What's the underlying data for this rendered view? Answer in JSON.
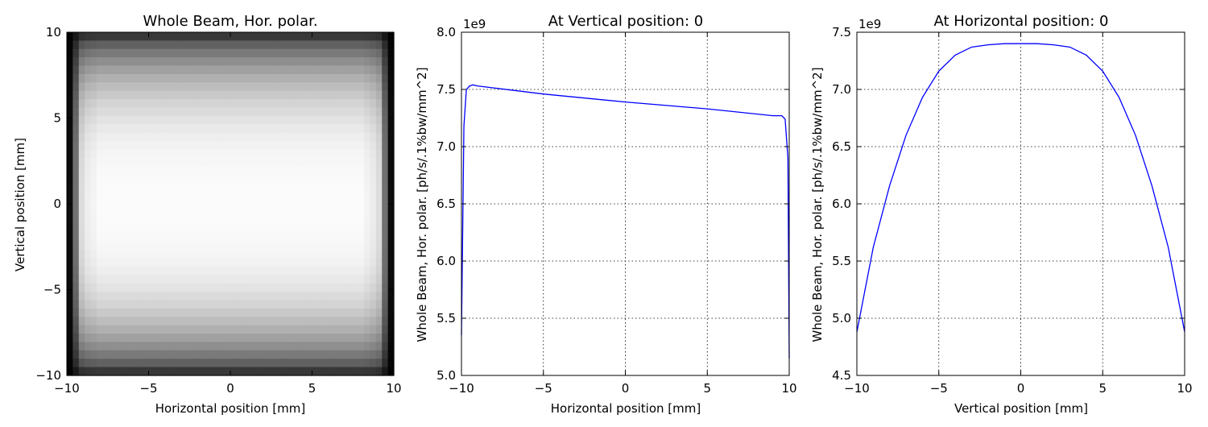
{
  "chart_data": [
    {
      "type": "heatmap",
      "title": "Whole Beam, Hor. polar.",
      "xlabel": "Horizontal position [mm]",
      "ylabel": "Vertical position [mm]",
      "xlim": [
        -10,
        10
      ],
      "ylim": [
        -10,
        10
      ],
      "xticks": [
        -10,
        -5,
        0,
        5,
        10
      ],
      "yticks": [
        -10,
        -5,
        0,
        5,
        10
      ],
      "xtick_labels": [
        "−10",
        "−5",
        "0",
        "5",
        "10"
      ],
      "ytick_labels": [
        "−10",
        "−5",
        "0",
        "5",
        "10"
      ],
      "grid": false,
      "colormap": "gray_r",
      "colors": {
        "low": "#ffffff",
        "high": "#000000"
      },
      "row_intensity": [
        0.78,
        0.62,
        0.52,
        0.44,
        0.37,
        0.31,
        0.26,
        0.21,
        0.17,
        0.14,
        0.11,
        0.085,
        0.065,
        0.05,
        0.038,
        0.03,
        0.024,
        0.02,
        0.017,
        0.015,
        0.014,
        0.015,
        0.017,
        0.02,
        0.024,
        0.03,
        0.038,
        0.05,
        0.065,
        0.085,
        0.11,
        0.14,
        0.17,
        0.21,
        0.26,
        0.31,
        0.37,
        0.44,
        0.52,
        0.62,
        0.78
      ],
      "column_intensity": [
        0.95,
        0.55,
        0.12,
        0.05,
        0.03,
        0.0,
        0.0,
        0.0,
        0.0,
        0.0,
        0.0,
        0.0,
        0.0,
        0.0,
        0.0,
        0.0,
        0.0,
        0.0,
        0.0,
        0.0,
        0.0,
        0.0,
        0.0,
        0.0,
        0.0,
        0.0,
        0.0,
        0.0,
        0.0,
        0.0,
        0.0,
        0.0,
        0.0,
        0.0,
        0.0,
        0.0,
        0.0,
        0.0,
        0.0,
        0.0,
        0.0,
        0.0,
        0.0,
        0.0,
        0.0,
        0.0,
        0.0,
        0.0,
        0.0,
        0.0,
        0.03,
        0.06,
        0.12,
        0.55,
        0.95
      ]
    },
    {
      "type": "line",
      "title": "At Vertical position: 0",
      "xlabel": "Horizontal position [mm]",
      "ylabel": "Whole Beam, Hor. polar. [ph/s/.1%bw/mm^2]",
      "offset_text": "1e9",
      "xlim": [
        -10,
        10
      ],
      "ylim": [
        5.0,
        8.0
      ],
      "xticks": [
        -10,
        -5,
        0,
        5,
        10
      ],
      "yticks": [
        5.0,
        5.5,
        6.0,
        6.5,
        7.0,
        7.5,
        8.0
      ],
      "xtick_labels": [
        "−10",
        "−5",
        "0",
        "5",
        "10"
      ],
      "ytick_labels": [
        "5.0",
        "5.5",
        "6.0",
        "6.5",
        "7.0",
        "7.5",
        "8.0"
      ],
      "grid": true,
      "series": [
        {
          "color": "#0000ff",
          "x": [
            -10.0,
            -9.85,
            -9.7,
            -9.5,
            -9.3,
            -9.0,
            -5.0,
            0.0,
            5.0,
            9.0,
            9.3,
            9.55,
            9.75,
            9.92,
            10.0
          ],
          "y": [
            5.35,
            7.18,
            7.5,
            7.53,
            7.54,
            7.53,
            7.46,
            7.39,
            7.33,
            7.27,
            7.27,
            7.27,
            7.24,
            6.9,
            5.15
          ]
        }
      ]
    },
    {
      "type": "line",
      "title": "At Horizontal position: 0",
      "xlabel": "Vertical position [mm]",
      "ylabel": "Whole Beam, Hor. polar. [ph/s/.1%bw/mm^2]",
      "offset_text": "1e9",
      "xlim": [
        -10,
        10
      ],
      "ylim": [
        4.5,
        7.5
      ],
      "xticks": [
        -10,
        -5,
        0,
        5,
        10
      ],
      "yticks": [
        4.5,
        5.0,
        5.5,
        6.0,
        6.5,
        7.0,
        7.5
      ],
      "xtick_labels": [
        "−10",
        "−5",
        "0",
        "5",
        "10"
      ],
      "ytick_labels": [
        "4.5",
        "5.0",
        "5.5",
        "6.0",
        "6.5",
        "7.0",
        "7.5"
      ],
      "grid": true,
      "series": [
        {
          "color": "#0000ff",
          "x": [
            -10,
            -9,
            -8,
            -7,
            -6,
            -5,
            -4,
            -3,
            -2,
            -1,
            0,
            1,
            2,
            3,
            4,
            5,
            6,
            7,
            8,
            9,
            10
          ],
          "y": [
            4.88,
            5.62,
            6.16,
            6.6,
            6.93,
            7.16,
            7.3,
            7.37,
            7.39,
            7.4,
            7.4,
            7.4,
            7.39,
            7.37,
            7.3,
            7.16,
            6.93,
            6.6,
            6.16,
            5.62,
            4.88
          ]
        }
      ]
    }
  ]
}
